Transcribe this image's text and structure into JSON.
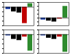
{
  "chart_data": [
    {
      "type": "bar",
      "categories": [
        null,
        null,
        null,
        null,
        null
      ],
      "values": [
        -10,
        -20,
        -25,
        -70,
        15
      ],
      "colors": [
        "#1f3f9f",
        "#000000",
        "#000000",
        "#c00000",
        "#2e8b2e"
      ],
      "ylim": [
        -80,
        20
      ],
      "yticks": [
        -80,
        -60,
        -40,
        -20,
        0,
        20
      ],
      "tick_labels": false
    },
    {
      "type": "bar",
      "categories": [
        null,
        null,
        null,
        null,
        null
      ],
      "values": [
        -10,
        -15,
        -20,
        -5,
        60
      ],
      "colors": [
        "#1f3f9f",
        "#000000",
        "#000000",
        "#c00000",
        "#2e8b2e"
      ],
      "ylim": [
        -40,
        80
      ],
      "yticks": [
        -40,
        -20,
        0,
        20,
        40,
        60,
        80
      ],
      "tick_labels": false
    },
    {
      "type": "bar",
      "categories": [
        null,
        null,
        null,
        null,
        null
      ],
      "values": [
        -5,
        -20,
        -25,
        -10,
        -70
      ],
      "colors": [
        "#1f3f9f",
        "#000000",
        "#000000",
        "#c00000",
        "#2e8b2e"
      ],
      "ylim": [
        -80,
        20
      ],
      "yticks": [
        -80,
        -60,
        -40,
        -20,
        0,
        20
      ],
      "tick_labels": false
    },
    {
      "type": "bar",
      "categories": [
        null,
        null,
        null,
        null,
        null
      ],
      "values": [
        -5,
        -15,
        -20,
        -10,
        -75
      ],
      "colors": [
        "#1f3f9f",
        "#000000",
        "#000000",
        "#c00000",
        "#2e8b2e"
      ],
      "ylim": [
        -80,
        20
      ],
      "yticks": [
        -80,
        -60,
        -40,
        -20,
        0,
        20
      ],
      "tick_labels": false
    }
  ]
}
